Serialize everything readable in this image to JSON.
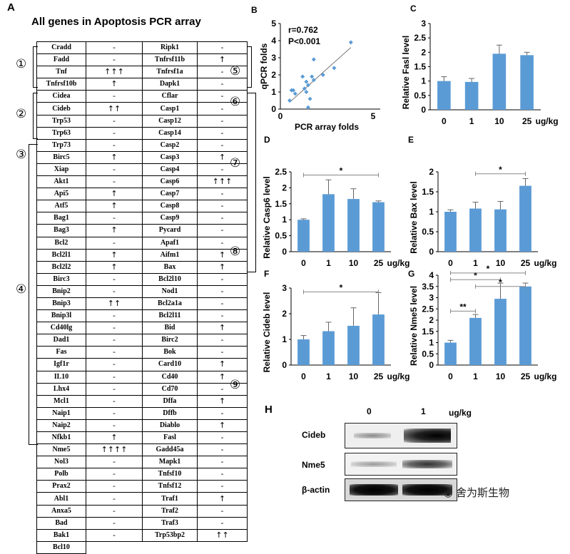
{
  "panelA": {
    "letter": "A",
    "title": "All genes in Apoptosis PCR array",
    "group_labels": [
      "①",
      "②",
      "③",
      "④",
      "⑤",
      "⑥",
      "⑦",
      "⑧",
      "⑨"
    ],
    "rows": [
      [
        "Cradd",
        "-",
        "Ripk1",
        "-"
      ],
      [
        "Fadd",
        "-",
        "Tnfrsf11b",
        "↑"
      ],
      [
        "Tnf",
        "↑↑↑",
        "Tnfrsf1a",
        "-"
      ],
      [
        "Tnfrsf10b",
        "↑",
        "Dapk1",
        "-"
      ],
      [
        "Cidea",
        "-",
        "Cflar",
        "-"
      ],
      [
        "Cideb",
        "↑↑",
        "Casp1",
        "-"
      ],
      [
        "Trp53",
        "-",
        "Casp12",
        "-"
      ],
      [
        "Trp63",
        "-",
        "Casp14",
        "-"
      ],
      [
        "Trp73",
        "-",
        "Casp2",
        "-"
      ],
      [
        "Birc5",
        "↑",
        "Casp3",
        "↑"
      ],
      [
        "Xiap",
        "-",
        "Casp4",
        "-"
      ],
      [
        "Akt1",
        "-",
        "Casp6",
        "↑↑↑"
      ],
      [
        "Api5",
        "↑",
        "Casp7",
        "-"
      ],
      [
        "Atf5",
        "↑",
        "Casp8",
        "-"
      ],
      [
        "Bag1",
        "-",
        "Casp9",
        "-"
      ],
      [
        "Bag3",
        "↑",
        "Pycard",
        "-"
      ],
      [
        "Bcl2",
        "-",
        "Apaf1",
        "-"
      ],
      [
        "Bcl2l1",
        "↑",
        "Aifm1",
        "↑"
      ],
      [
        "Bcl2l2",
        "↑",
        "Bax",
        "↑"
      ],
      [
        "Birc3",
        "-",
        "Bcl2l10",
        "-"
      ],
      [
        "Bnip2",
        "-",
        "Nod1",
        "-"
      ],
      [
        "Bnip3",
        "↑↑",
        "Bcl2a1a",
        "-"
      ],
      [
        "Bnip3l",
        "-",
        "Bcl2l11",
        "-"
      ],
      [
        "Cd40lg",
        "-",
        "Bid",
        "↑"
      ],
      [
        "Dad1",
        "-",
        "Birc2",
        "-"
      ],
      [
        "Fas",
        "-",
        "Bok",
        "-"
      ],
      [
        "Igf1r",
        "-",
        "Card10",
        "↑"
      ],
      [
        "IL10",
        "-",
        "Cd40",
        "↑"
      ],
      [
        "Lhx4",
        "-",
        "Cd70",
        "-"
      ],
      [
        "Mcl1",
        "-",
        "Dffa",
        "↑"
      ],
      [
        "Naip1",
        "-",
        "Dffb",
        "-"
      ],
      [
        "Naip2",
        "-",
        "Diablo",
        "↑"
      ],
      [
        "Nfkb1",
        "↑",
        "Fasl",
        "-"
      ],
      [
        "Nme5",
        "↑↑↑↑",
        "Gadd45a",
        "-"
      ],
      [
        "Nol3",
        "-",
        "Mapk1",
        "-"
      ],
      [
        "Polb",
        "-",
        "Tnfsf10",
        "-"
      ],
      [
        "Prax2",
        "-",
        "Tnfsf12",
        "-"
      ],
      [
        "Abl1",
        "-",
        "Traf1",
        "↑"
      ],
      [
        "Anxa5",
        "-",
        "Traf2",
        "-"
      ],
      [
        "Bad",
        "-",
        "Traf3",
        "-"
      ],
      [
        "Bak1",
        "-",
        "Trp53bp2",
        "↑↑"
      ],
      [
        "Bcl10",
        "",
        "",
        ""
      ]
    ]
  },
  "panelB": {
    "letter": "B",
    "annotation_r": "r=0.762",
    "annotation_p": "P<0.001",
    "xlabel": "PCR array folds",
    "ylabel": "qPCR folds",
    "color": "#5b9bd5"
  },
  "bar_panels": [
    {
      "letter": "C",
      "ylabel": "Relative Fasl level",
      "unit": "ug/kg"
    },
    {
      "letter": "D",
      "ylabel": "Relative Casp6  level",
      "unit": "ug/kg"
    },
    {
      "letter": "E",
      "ylabel": "Relative Bax level",
      "unit": "ug/kg"
    },
    {
      "letter": "F",
      "ylabel": "Relative Cideb level",
      "unit": "ug/kg"
    },
    {
      "letter": "G",
      "ylabel": "Relative Nme5 level",
      "unit": "ug/kg"
    }
  ],
  "panelH": {
    "letter": "H",
    "doses": [
      "0",
      "1"
    ],
    "unit": "ug/kg",
    "bands": [
      "Cideb",
      "Nme5",
      "β-actin"
    ]
  },
  "watermark": "舍为斯生物",
  "chart_data": [
    {
      "type": "scatter",
      "panel": "B",
      "xlabel": "PCR array folds",
      "ylabel": "qPCR folds",
      "xlim": [
        0,
        5
      ],
      "ylim": [
        0,
        5
      ],
      "x_ticks": [
        "0",
        "5"
      ],
      "y_ticks": [
        "0",
        "1",
        "2",
        "3",
        "4",
        "5"
      ],
      "points": [
        [
          0.5,
          0.5
        ],
        [
          0.6,
          1.1
        ],
        [
          0.7,
          1.1
        ],
        [
          0.8,
          0.9
        ],
        [
          1.2,
          1.9
        ],
        [
          1.3,
          1.2
        ],
        [
          1.4,
          1.6
        ],
        [
          1.4,
          1.0
        ],
        [
          1.5,
          0.1
        ],
        [
          1.5,
          1.4
        ],
        [
          1.6,
          0.6
        ],
        [
          1.7,
          1.9
        ],
        [
          1.8,
          2.9
        ],
        [
          1.8,
          1.7
        ],
        [
          2.3,
          2.0
        ],
        [
          2.9,
          2.4
        ],
        [
          3.8,
          3.9
        ]
      ],
      "annotations": [
        "r=0.762",
        "P<0.001"
      ]
    },
    {
      "type": "bar",
      "panel": "C",
      "ylabel": "Relative Fasl level",
      "categories": [
        "0",
        "1",
        "10",
        "25"
      ],
      "values": [
        1.0,
        0.97,
        1.95,
        1.9
      ],
      "errors": [
        0.15,
        0.12,
        0.3,
        0.1
      ],
      "ylim": [
        0,
        3
      ],
      "ticks": [
        "0",
        "0.5",
        "1",
        "1.5",
        "2",
        "2.5",
        "3"
      ],
      "significance": []
    },
    {
      "type": "bar",
      "panel": "D",
      "ylabel": "Relative Casp6  level",
      "categories": [
        "0",
        "1",
        "10",
        "25"
      ],
      "values": [
        1.0,
        1.8,
        1.65,
        1.55
      ],
      "errors": [
        0.03,
        0.45,
        0.32,
        0.04
      ],
      "ylim": [
        0,
        2.5
      ],
      "ticks": [
        "0",
        "0.5",
        "1",
        "1.5",
        "2",
        "2.5"
      ],
      "significance": [
        {
          "from": 0,
          "to": 3,
          "label": "*",
          "y": 2.4
        }
      ]
    },
    {
      "type": "bar",
      "panel": "E",
      "ylabel": "Relative Bax level",
      "categories": [
        "0",
        "1",
        "10",
        "25"
      ],
      "values": [
        1.0,
        1.08,
        1.06,
        1.65
      ],
      "errors": [
        0.05,
        0.16,
        0.2,
        0.18
      ],
      "ylim": [
        0,
        2
      ],
      "ticks": [
        "0",
        "0.5",
        "1",
        "1.5",
        "2"
      ],
      "significance": [
        {
          "from": 1,
          "to": 3,
          "label": "*",
          "y": 1.95
        }
      ]
    },
    {
      "type": "bar",
      "panel": "F",
      "ylabel": "Relative Cideb level",
      "categories": [
        "0",
        "1",
        "10",
        "25"
      ],
      "values": [
        1.0,
        1.32,
        1.53,
        1.97
      ],
      "errors": [
        0.15,
        0.35,
        0.7,
        0.85
      ],
      "ylim": [
        0,
        3
      ],
      "ticks": [
        "0",
        "1",
        "2",
        "3"
      ],
      "significance": [
        {
          "from": 0,
          "to": 3,
          "label": "*",
          "y": 2.85
        }
      ]
    },
    {
      "type": "bar",
      "panel": "G",
      "ylabel": "Relative Nme5 level",
      "categories": [
        "0",
        "1",
        "10",
        "25"
      ],
      "values": [
        1.0,
        2.1,
        2.95,
        3.5
      ],
      "errors": [
        0.1,
        0.15,
        0.7,
        0.15
      ],
      "ylim": [
        0,
        4
      ],
      "ticks": [
        "0",
        "0.5",
        "1",
        "1.5",
        "2",
        "2.5",
        "3",
        "3.5",
        "4"
      ],
      "significance": [
        {
          "from": 0,
          "to": 1,
          "label": "**",
          "y": 2.4
        },
        {
          "from": 0,
          "to": 2,
          "label": "*",
          "y": 3.8
        },
        {
          "from": 0,
          "to": 3,
          "label": "*",
          "y": 4.1
        },
        {
          "from": 1,
          "to": 3,
          "label": "*",
          "y": 3.5
        }
      ]
    }
  ]
}
